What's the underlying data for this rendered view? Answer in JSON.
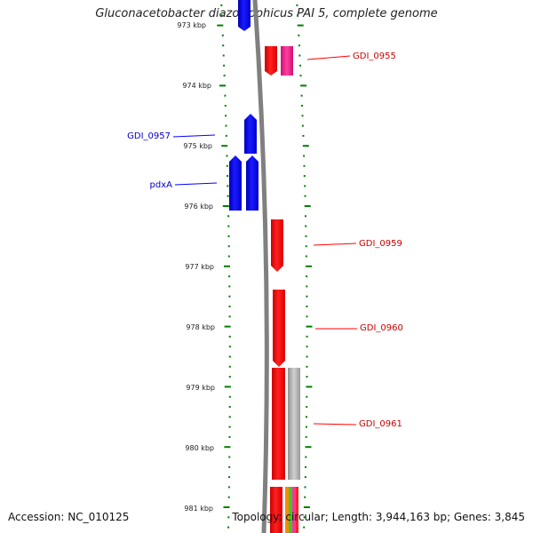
{
  "title": "Gluconacetobacter diazotrophicus PAI 5, complete genome",
  "footer": {
    "accession": "Accession: NC_010125",
    "summary": "Topology: circular; Length: 3,944,163 bp; Genes: 3,845"
  },
  "colors": {
    "forward_gene": "#ff0000",
    "reverse_gene": "#0000ff",
    "pink_gene": "#ff3399",
    "gray_gene": "#b0b0b0",
    "backbone": "#808080",
    "tick": "#008000"
  },
  "axis": {
    "labels": [
      "973 kbp",
      "974 kbp",
      "975 kbp",
      "976 kbp",
      "977 kbp",
      "978 kbp",
      "979 kbp",
      "980 kbp",
      "981 kbp"
    ]
  },
  "gene_labels": [
    {
      "name": "GDI_0955",
      "strand": "forward"
    },
    {
      "name": "GDI_0957",
      "strand": "reverse"
    },
    {
      "name": "pdxA",
      "strand": "reverse"
    },
    {
      "name": "GDI_0959",
      "strand": "forward"
    },
    {
      "name": "GDI_0960",
      "strand": "forward"
    },
    {
      "name": "GDI_0961",
      "strand": "forward"
    }
  ]
}
